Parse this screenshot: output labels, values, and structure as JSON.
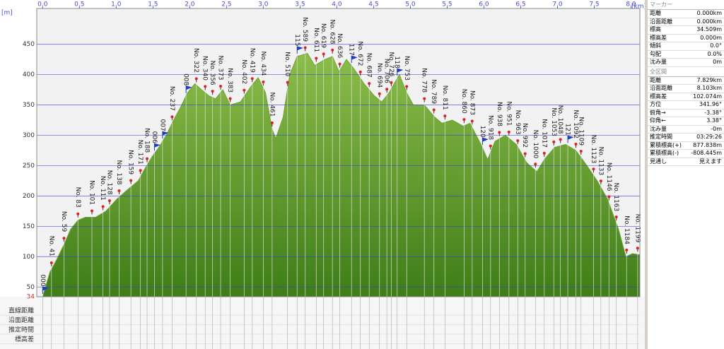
{
  "chart_data": {
    "type": "area",
    "x_unit": "[km]",
    "y_unit": "[m]",
    "x": [
      0,
      0.1,
      0.19,
      0.29,
      0.38,
      0.48,
      0.58,
      0.72,
      0.86,
      1.01,
      1.15,
      1.3,
      1.39,
      1.49,
      1.58,
      1.68,
      1.78,
      1.87,
      1.97,
      2.07,
      2.16,
      2.26,
      2.35,
      2.45,
      2.55,
      2.69,
      2.83,
      2.93,
      3.03,
      3.12,
      3.17,
      3.27,
      3.36,
      3.46,
      3.6,
      3.7,
      3.84,
      3.94,
      4.03,
      4.13,
      4.23,
      4.37,
      4.51,
      4.61,
      4.71,
      4.85,
      4.95,
      5.04,
      5.19,
      5.33,
      5.43,
      5.57,
      5.72,
      5.81,
      5.96,
      6.05,
      6.15,
      6.29,
      6.44,
      6.58,
      6.72,
      6.82,
      6.96,
      7.11,
      7.25,
      7.4,
      7.54,
      7.68,
      7.83,
      7.93,
      8.02,
      8.12
    ],
    "values": [
      34,
      75,
      95,
      120,
      145,
      160,
      165,
      165,
      175,
      195,
      210,
      225,
      245,
      265,
      280,
      300,
      325,
      345,
      370,
      385,
      375,
      365,
      360,
      375,
      350,
      355,
      380,
      395,
      370,
      310,
      295,
      330,
      400,
      430,
      435,
      415,
      425,
      430,
      405,
      425,
      410,
      385,
      365,
      355,
      370,
      400,
      370,
      350,
      350,
      330,
      320,
      325,
      315,
      320,
      285,
      260,
      290,
      300,
      285,
      255,
      240,
      260,
      280,
      285,
      275,
      250,
      225,
      195,
      145,
      100,
      105,
      103
    ],
    "color": "#6fa232",
    "xlim": [
      -0.08,
      8.12
    ],
    "ylim": [
      34,
      509
    ],
    "xticks": [
      {
        "value": 0,
        "label": "0.0"
      },
      {
        "value": 0.5,
        "label": "0.5"
      },
      {
        "value": 1,
        "label": "1.0"
      },
      {
        "value": 1.5,
        "label": "1.5"
      },
      {
        "value": 2,
        "label": "2.0"
      },
      {
        "value": 2.5,
        "label": "2.5"
      },
      {
        "value": 3,
        "label": "3.0"
      },
      {
        "value": 3.5,
        "label": "3.5"
      },
      {
        "value": 4,
        "label": "4.0"
      },
      {
        "value": 4.5,
        "label": "4.5"
      },
      {
        "value": 5,
        "label": "5.0"
      },
      {
        "value": 5.5,
        "label": "5.5"
      },
      {
        "value": 6,
        "label": "6.0"
      },
      {
        "value": 6.5,
        "label": "6.5"
      },
      {
        "value": 7,
        "label": "7.0"
      },
      {
        "value": 7.5,
        "label": "7.5"
      },
      {
        "value": 8,
        "label": "8.0"
      }
    ],
    "yticks": [
      34,
      50,
      100,
      150,
      200,
      250,
      300,
      350,
      400,
      450
    ],
    "grid": true,
    "waypoints": [
      {
        "label": "000",
        "x": 0
      },
      {
        "label": "No. 41",
        "x": 0.12
      },
      {
        "label": "No. 59",
        "x": 0.29
      },
      {
        "label": "No. 83",
        "x": 0.48
      },
      {
        "label": "No. 101",
        "x": 0.67
      },
      {
        "label": "No. 111",
        "x": 0.82
      },
      {
        "label": "No. 128",
        "x": 0.91
      },
      {
        "label": "No. 138",
        "x": 1.04
      },
      {
        "label": "No. 159",
        "x": 1.2
      },
      {
        "label": "No. 171",
        "x": 1.33
      },
      {
        "label": "No. 188",
        "x": 1.42
      },
      {
        "label": "006",
        "x": 1.52
      },
      {
        "label": "007",
        "x": 1.63
      },
      {
        "label": "No. 237",
        "x": 1.76
      },
      {
        "label": "008",
        "x": 1.95
      },
      {
        "label": "No. 322",
        "x": 2.09
      },
      {
        "label": "No. 340",
        "x": 2.21
      },
      {
        "label": "No. 356",
        "x": 2.31
      },
      {
        "label": "No. 373",
        "x": 2.42
      },
      {
        "label": "No. 383",
        "x": 2.55
      },
      {
        "label": "No. 402",
        "x": 2.74
      },
      {
        "label": "No. 419",
        "x": 2.85
      },
      {
        "label": "No. 434",
        "x": 3.0
      },
      {
        "label": "No. 461",
        "x": 3.12
      },
      {
        "label": "No. 510",
        "x": 3.33
      },
      {
        "label": "115",
        "x": 3.46
      },
      {
        "label": "No. 589",
        "x": 3.57
      },
      {
        "label": "No. 611",
        "x": 3.72
      },
      {
        "label": "No. 619",
        "x": 3.82
      },
      {
        "label": "No. 628",
        "x": 3.94
      },
      {
        "label": "No. 636",
        "x": 4.04
      },
      {
        "label": "117",
        "x": 4.2
      },
      {
        "label": "No. 672",
        "x": 4.32
      },
      {
        "label": "No. 687",
        "x": 4.44
      },
      {
        "label": "No. 694",
        "x": 4.58
      },
      {
        "label": "No. 706",
        "x": 4.68
      },
      {
        "label": "No. 726",
        "x": 4.74
      },
      {
        "label": "118",
        "x": 4.82
      },
      {
        "label": "No. 753",
        "x": 4.95
      },
      {
        "label": "No. 778",
        "x": 5.19
      },
      {
        "label": "No. 789",
        "x": 5.32
      },
      {
        "label": "No. 811",
        "x": 5.47
      },
      {
        "label": "No. 860",
        "x": 5.73
      },
      {
        "label": "No. 873",
        "x": 5.84
      },
      {
        "label": "120",
        "x": 5.98
      },
      {
        "label": "No. 918",
        "x": 6.09
      },
      {
        "label": "No. 938",
        "x": 6.21
      },
      {
        "label": "No. 951",
        "x": 6.34
      },
      {
        "label": "No. 963",
        "x": 6.46
      },
      {
        "label": "No. 992",
        "x": 6.56
      },
      {
        "label": "No. 1000",
        "x": 6.7
      },
      {
        "label": "No. 1017",
        "x": 6.82
      },
      {
        "label": "No. 1053",
        "x": 6.95
      },
      {
        "label": "No. 1048",
        "x": 7.04
      },
      {
        "label": "121",
        "x": 7.14
      },
      {
        "label": "No. 1092",
        "x": 7.25
      },
      {
        "label": "No. 1109",
        "x": 7.32
      },
      {
        "label": "No. 1123",
        "x": 7.49
      },
      {
        "label": "No. 1133",
        "x": 7.59
      },
      {
        "label": "No. 1146",
        "x": 7.7
      },
      {
        "label": "No. 1163",
        "x": 7.8
      },
      {
        "label": "No. 1184",
        "x": 7.94
      },
      {
        "label": "No. 1199",
        "x": 8.09
      }
    ]
  },
  "table": {
    "row_headers": [
      "直線距離",
      "沿面距離",
      "推定時間",
      "標高差"
    ]
  },
  "panel": {
    "marker": {
      "title": "マーカー",
      "rows": [
        [
          "距離",
          "0.000km"
        ],
        [
          "沿面距離",
          "0.000km"
        ],
        [
          "標高",
          "34.509m"
        ],
        [
          "標高差",
          "0.000m"
        ],
        [
          "傾斜",
          "0.0°"
        ],
        [
          "勾配",
          "0.0%"
        ],
        [
          "沈み量",
          "0m"
        ]
      ]
    },
    "total": {
      "title": "全区間",
      "rows": [
        [
          "距離",
          "7.829km"
        ],
        [
          "沿面距離",
          "8.103km"
        ],
        [
          "標高差",
          "102.074m"
        ],
        [
          "方位",
          "341.96°"
        ],
        [
          "俯角→",
          "-3.38°"
        ],
        [
          "仰角←",
          "3.38°"
        ],
        [
          "沈み量",
          "-0m"
        ],
        [
          "推定時間",
          "03:29:26"
        ],
        [
          "累積標高(+)",
          "877.838m"
        ],
        [
          "累積標高(-)",
          "-808.445m"
        ],
        [
          "見通し",
          "見えます"
        ]
      ]
    }
  }
}
